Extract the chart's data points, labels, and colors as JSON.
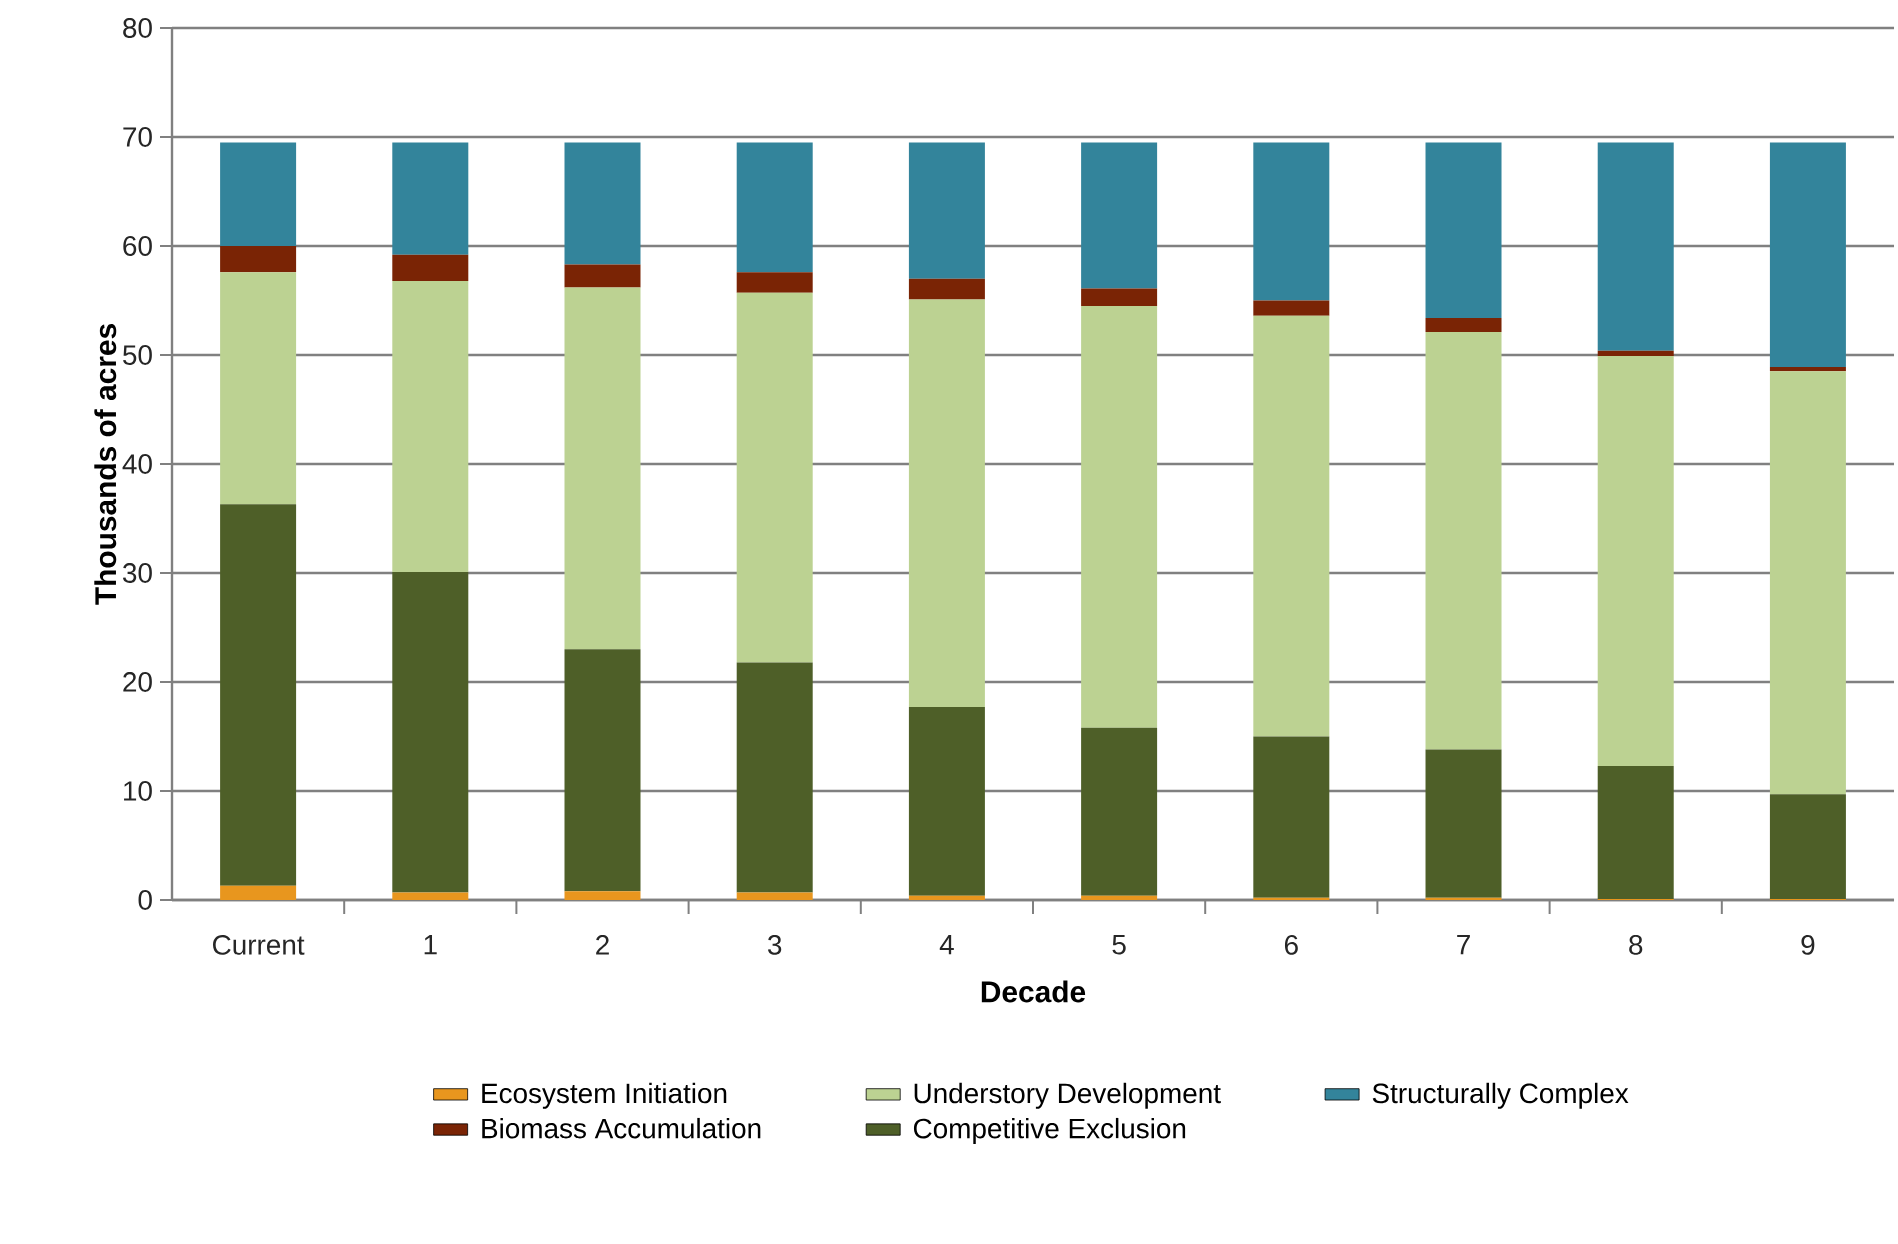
{
  "chart_data": {
    "type": "bar",
    "stacked": true,
    "xlabel": "Decade",
    "ylabel": "Thousands of acres",
    "categories": [
      "Current",
      "1",
      "2",
      "3",
      "4",
      "5",
      "6",
      "7",
      "8",
      "9"
    ],
    "series": [
      {
        "name": "Ecosystem Initiation",
        "color": "#e8961e",
        "values": [
          1.3,
          0.7,
          0.8,
          0.7,
          0.4,
          0.4,
          0.2,
          0.2,
          0.1,
          0.1
        ]
      },
      {
        "name": "Competitive Exclusion",
        "color": "#4e5f28",
        "values": [
          35.0,
          29.4,
          22.2,
          21.1,
          17.3,
          15.4,
          14.8,
          13.6,
          12.2,
          9.6
        ]
      },
      {
        "name": "Understory Development",
        "color": "#bcd292",
        "values": [
          21.3,
          26.7,
          33.2,
          33.9,
          37.4,
          38.7,
          38.6,
          38.3,
          37.6,
          38.8
        ]
      },
      {
        "name": "Biomass Accumulation",
        "color": "#7a2405",
        "values": [
          2.4,
          2.4,
          2.1,
          1.9,
          1.9,
          1.6,
          1.4,
          1.3,
          0.5,
          0.4
        ]
      },
      {
        "name": "Structurally Complex",
        "color": "#33849b",
        "values": [
          9.5,
          10.3,
          11.2,
          11.9,
          12.5,
          13.4,
          14.5,
          16.1,
          19.1,
          20.6
        ]
      }
    ],
    "ylim": [
      0,
      80
    ],
    "yticks": [
      0,
      10,
      20,
      30,
      40,
      50,
      60,
      70,
      80
    ],
    "grid": "y",
    "legend": "bottom"
  }
}
